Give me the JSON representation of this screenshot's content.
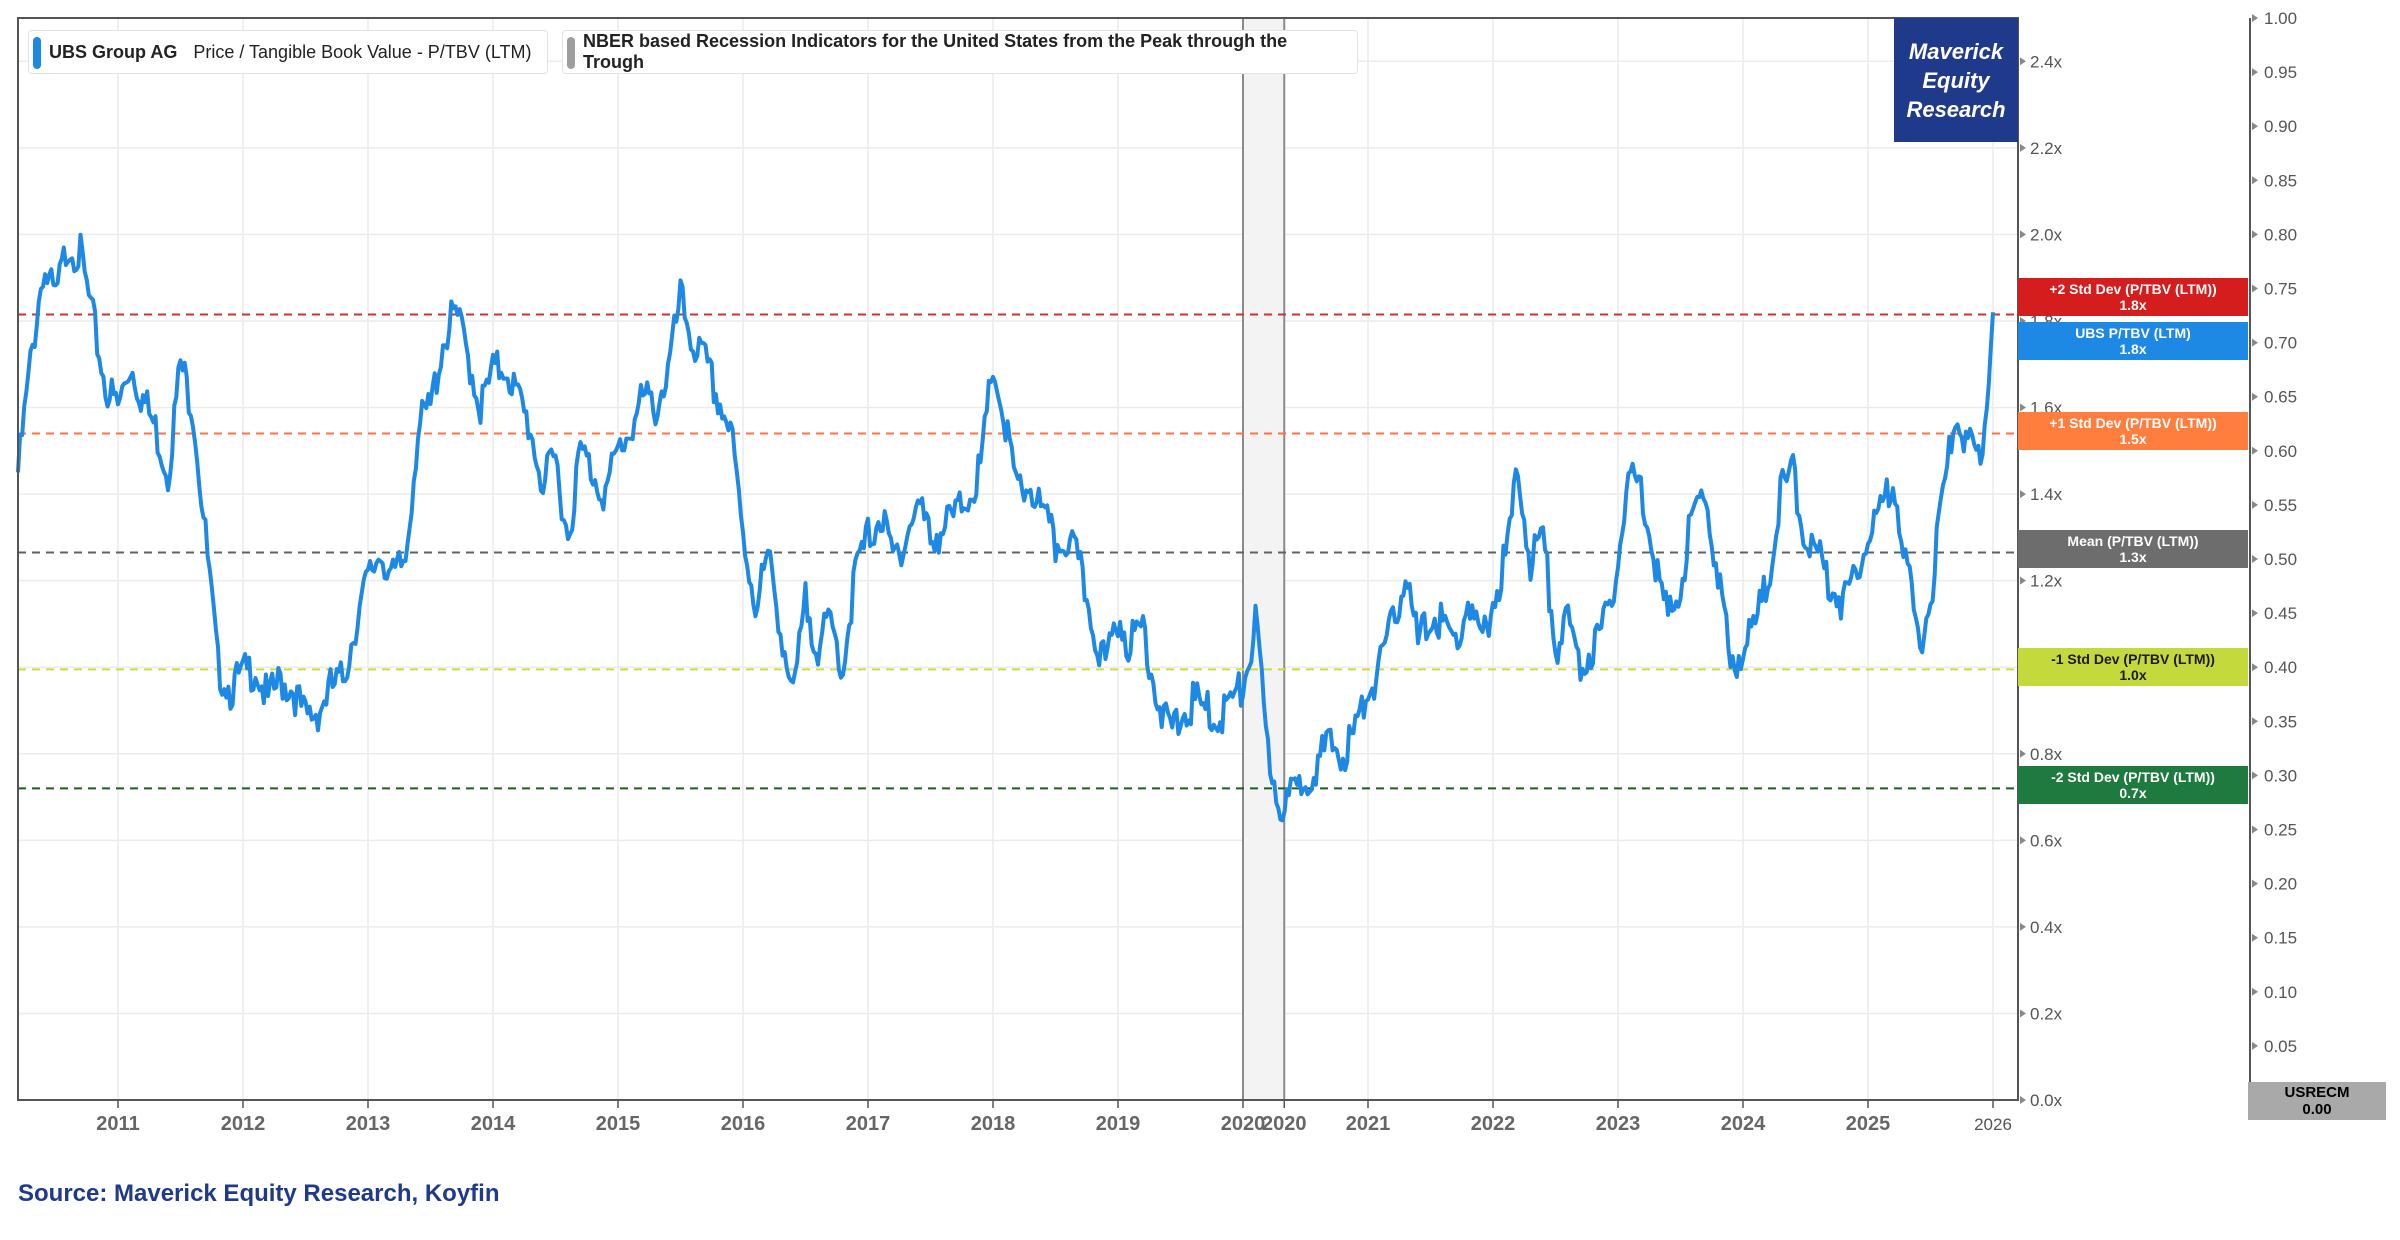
{
  "chart_data": {
    "type": "line",
    "title": "UBS Group AG Price / Tangible Book Value - P/TBV (LTM)",
    "legend": [
      {
        "name": "UBS Group AG",
        "metric": "Price / Tangible Book Value - P/TBV (LTM)",
        "color": "#1e88e5"
      },
      {
        "name": "NBER based Recession Indicators for the United States from the Peak through the Trough",
        "metric": "",
        "color": "#9e9e9e"
      }
    ],
    "x_range": [
      2010.2,
      2026.2
    ],
    "x_ticks": [
      "2011",
      "2012",
      "2013",
      "2014",
      "2015",
      "2016",
      "2017",
      "2018",
      "2019",
      "2020",
      "2020",
      "2021",
      "2022",
      "2023",
      "2024",
      "2025",
      "2026"
    ],
    "x_tick_values": [
      2011,
      2012,
      2013,
      2014,
      2015,
      2016,
      2017,
      2018,
      2019,
      2020,
      2020.33,
      2021,
      2022,
      2023,
      2024,
      2025,
      2026
    ],
    "y_left": {
      "min": 0,
      "max": 2.5,
      "ticks": [
        "0.0x",
        "0.2x",
        "0.4x",
        "0.6x",
        "0.8x",
        "1.0x",
        "1.2x",
        "1.4x",
        "1.6x",
        "1.8x",
        "2.0x",
        "2.2x",
        "2.4x"
      ],
      "tick_values": [
        0,
        0.2,
        0.4,
        0.6,
        0.8,
        1.0,
        1.2,
        1.4,
        1.6,
        1.8,
        2.0,
        2.2,
        2.4
      ]
    },
    "y_right": {
      "min": 0,
      "max": 1.0,
      "ticks": [
        "0.05",
        "0.10",
        "0.15",
        "0.20",
        "0.25",
        "0.30",
        "0.35",
        "0.40",
        "0.45",
        "0.50",
        "0.55",
        "0.60",
        "0.65",
        "0.70",
        "0.75",
        "0.80",
        "0.85",
        "0.90",
        "0.95",
        "1.00"
      ],
      "tick_values": [
        0.05,
        0.1,
        0.15,
        0.2,
        0.25,
        0.3,
        0.35,
        0.4,
        0.45,
        0.5,
        0.55,
        0.6,
        0.65,
        0.7,
        0.75,
        0.8,
        0.85,
        0.9,
        0.95,
        1.0
      ],
      "last_tick_label": "1.00"
    },
    "ref_lines": [
      {
        "label": "+2 Std Dev (P/TBV (LTM))",
        "value_label": "1.8x",
        "value": 1.815,
        "color": "#d32f2f",
        "tag_color": "#d51d1d"
      },
      {
        "label": "+1 Std Dev (P/TBV (LTM))",
        "value_label": "1.5x",
        "value": 1.54,
        "color": "#ff7043",
        "tag_color": "#ff7e3e"
      },
      {
        "label": "Mean (P/TBV (LTM))",
        "value_label": "1.3x",
        "value": 1.265,
        "color": "#616161",
        "tag_color": "#6d6d6d"
      },
      {
        "label": "-1 Std Dev (P/TBV (LTM))",
        "value_label": "1.0x",
        "value": 0.995,
        "color": "#cddc39",
        "tag_color": "#c4d93b"
      },
      {
        "label": "-2 Std Dev (P/TBV (LTM))",
        "value_label": "0.7x",
        "value": 0.72,
        "color": "#1b5e20",
        "tag_color": "#1f7a3f"
      }
    ],
    "current_value_tag": {
      "label": "UBS P/TBV (LTM)",
      "value_label": "1.8x",
      "value": 1.79,
      "color": "#1e88e5"
    },
    "recession": {
      "start": 2020.0,
      "end": 2020.33,
      "series": "USRECM",
      "value_label": "0.00"
    },
    "series": [
      {
        "name": "UBS P/TBV (LTM)",
        "color": "#1e88e5",
        "x": [
          2010.2,
          2010.3,
          2010.4,
          2010.5,
          2010.6,
          2010.7,
          2010.8,
          2010.9,
          2011.0,
          2011.1,
          2011.2,
          2011.3,
          2011.4,
          2011.5,
          2011.6,
          2011.7,
          2011.8,
          2011.9,
          2012.0,
          2012.1,
          2012.2,
          2012.3,
          2012.4,
          2012.5,
          2012.6,
          2012.7,
          2012.8,
          2012.9,
          2013.0,
          2013.1,
          2013.2,
          2013.3,
          2013.4,
          2013.5,
          2013.6,
          2013.7,
          2013.8,
          2013.9,
          2014.0,
          2014.1,
          2014.2,
          2014.3,
          2014.4,
          2014.5,
          2014.6,
          2014.7,
          2014.8,
          2014.9,
          2015.0,
          2015.1,
          2015.2,
          2015.3,
          2015.4,
          2015.5,
          2015.6,
          2015.7,
          2015.8,
          2015.9,
          2016.0,
          2016.1,
          2016.2,
          2016.3,
          2016.4,
          2016.5,
          2016.6,
          2016.7,
          2016.8,
          2016.9,
          2017.0,
          2017.1,
          2017.2,
          2017.3,
          2017.4,
          2017.5,
          2017.6,
          2017.7,
          2017.8,
          2017.9,
          2018.0,
          2018.1,
          2018.2,
          2018.3,
          2018.4,
          2018.5,
          2018.6,
          2018.7,
          2018.8,
          2018.9,
          2019.0,
          2019.1,
          2019.2,
          2019.3,
          2019.4,
          2019.5,
          2019.6,
          2019.7,
          2019.8,
          2019.9,
          2020.0,
          2020.1,
          2020.2,
          2020.3,
          2020.4,
          2020.5,
          2020.6,
          2020.7,
          2020.8,
          2020.9,
          2021.0,
          2021.1,
          2021.2,
          2021.3,
          2021.4,
          2021.5,
          2021.6,
          2021.7,
          2021.8,
          2021.9,
          2022.0,
          2022.1,
          2022.2,
          2022.3,
          2022.4,
          2022.5,
          2022.6,
          2022.7,
          2022.8,
          2022.9,
          2023.0,
          2023.1,
          2023.2,
          2023.3,
          2023.4,
          2023.5,
          2023.6,
          2023.7,
          2023.8,
          2023.9,
          2024.0,
          2024.1,
          2024.2,
          2024.3,
          2024.4,
          2024.5,
          2024.6,
          2024.7,
          2024.8,
          2024.9,
          2025.0,
          2025.1,
          2025.2,
          2025.3,
          2025.4,
          2025.5,
          2025.6,
          2025.7,
          2025.8,
          2025.9,
          2026.0
        ],
        "y": [
          1.45,
          1.7,
          1.92,
          1.85,
          1.98,
          1.95,
          1.8,
          1.65,
          1.6,
          1.7,
          1.62,
          1.55,
          1.45,
          1.7,
          1.6,
          1.3,
          1.0,
          0.95,
          0.98,
          1.0,
          0.92,
          0.97,
          0.95,
          0.88,
          0.9,
          0.95,
          0.97,
          1.1,
          1.2,
          1.27,
          1.2,
          1.25,
          1.55,
          1.6,
          1.75,
          1.82,
          1.72,
          1.6,
          1.68,
          1.7,
          1.62,
          1.55,
          1.42,
          1.48,
          1.3,
          1.5,
          1.45,
          1.4,
          1.5,
          1.55,
          1.62,
          1.6,
          1.68,
          1.85,
          1.75,
          1.7,
          1.62,
          1.55,
          1.3,
          1.15,
          1.25,
          1.1,
          0.92,
          1.15,
          1.05,
          1.1,
          1.0,
          1.22,
          1.3,
          1.35,
          1.25,
          1.3,
          1.38,
          1.3,
          1.32,
          1.35,
          1.4,
          1.45,
          1.7,
          1.55,
          1.4,
          1.42,
          1.35,
          1.28,
          1.3,
          1.22,
          1.1,
          1.0,
          1.12,
          1.05,
          1.1,
          0.95,
          0.85,
          0.88,
          0.92,
          0.9,
          0.88,
          0.92,
          0.95,
          1.1,
          0.8,
          0.68,
          0.7,
          0.75,
          0.78,
          0.82,
          0.8,
          0.85,
          0.95,
          1.0,
          1.1,
          1.22,
          1.05,
          1.12,
          1.1,
          1.05,
          1.15,
          1.05,
          1.15,
          1.25,
          1.45,
          1.25,
          1.3,
          1.05,
          1.1,
          1.0,
          1.05,
          1.1,
          1.25,
          1.45,
          1.4,
          1.25,
          1.1,
          1.2,
          1.35,
          1.4,
          1.22,
          1.0,
          1.05,
          1.1,
          1.2,
          1.4,
          1.45,
          1.3,
          1.25,
          1.2,
          1.15,
          1.22,
          1.32,
          1.35,
          1.45,
          1.25,
          1.05,
          1.15,
          1.4,
          1.58,
          1.52,
          1.45,
          1.82
        ]
      }
    ]
  },
  "legend_text": {
    "series1_name": "UBS Group AG",
    "series1_metric": "Price / Tangible Book Value - P/TBV (LTM)",
    "series2_name": "NBER based Recession Indicators for the United States from the Peak through the Trough"
  },
  "logo": {
    "line1": "Maverick",
    "line2": "Equity",
    "line3": "Research"
  },
  "source_text": "Source: Maverick Equity Research, Koyfin",
  "tags": {
    "plus2": {
      "label": "+2 Std Dev (P/TBV (LTM))",
      "value": "1.8x"
    },
    "current": {
      "label": "UBS P/TBV (LTM)",
      "value": "1.8x"
    },
    "plus1": {
      "label": "+1 Std Dev (P/TBV (LTM))",
      "value": "1.5x"
    },
    "mean": {
      "label": "Mean (P/TBV (LTM))",
      "value": "1.3x"
    },
    "minus1": {
      "label": "-1 Std Dev (P/TBV (LTM))",
      "value": "1.0x"
    },
    "minus2": {
      "label": "-2 Std Dev (P/TBV (LTM))",
      "value": "0.7x"
    },
    "usrecm": {
      "label": "USRECM",
      "value": "0.00"
    }
  }
}
